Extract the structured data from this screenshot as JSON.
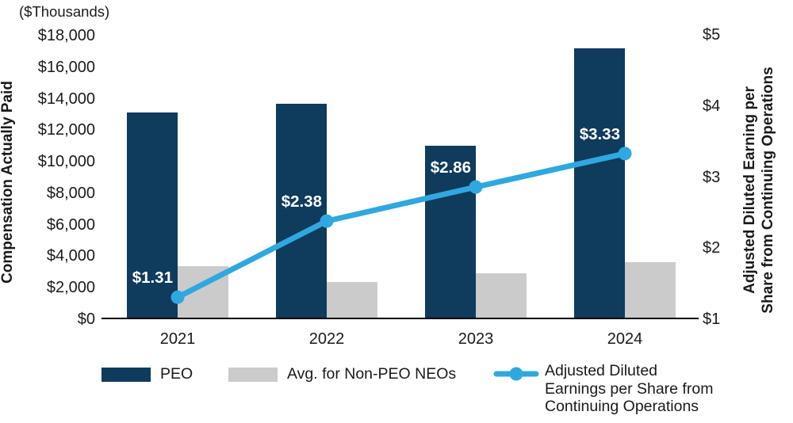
{
  "chart_data": {
    "type": "combo-bar-line",
    "categories": [
      "2021",
      "2022",
      "2023",
      "2024"
    ],
    "series": [
      {
        "name": "PEO",
        "type": "bar",
        "axis": "left",
        "color": "#0F3B5D",
        "values": [
          13100,
          13700,
          11000,
          17200
        ]
      },
      {
        "name": "Avg. for Non-PEO NEOs",
        "type": "bar",
        "axis": "left",
        "color": "#CBCBCB",
        "values": [
          3350,
          2350,
          2900,
          3600
        ]
      },
      {
        "name": "Adjusted Diluted Earnings per Share from Continuing Operations",
        "type": "line",
        "axis": "right",
        "color": "#2FA8DF",
        "values": [
          1.31,
          2.38,
          2.86,
          3.33
        ],
        "point_labels": [
          "$1.31",
          "$2.38",
          "$2.86",
          "$3.33"
        ]
      }
    ],
    "left_axis": {
      "unit_label": "($Thousands)",
      "title": "Compensation Actually Paid",
      "min": 0,
      "max": 18000,
      "ticks": [
        {
          "label": "$18,000",
          "value": 18000
        },
        {
          "label": "$16,000",
          "value": 16000
        },
        {
          "label": "$14,000",
          "value": 14000
        },
        {
          "label": "$12,000",
          "value": 12000
        },
        {
          "label": "$10,000",
          "value": 10000
        },
        {
          "label": "$8,000",
          "value": 8000
        },
        {
          "label": "$6,000",
          "value": 6000
        },
        {
          "label": "$4,000",
          "value": 4000
        },
        {
          "label": "$2,000",
          "value": 2000
        },
        {
          "label": "$0",
          "value": 0
        }
      ]
    },
    "right_axis": {
      "title_lines": [
        "Adjusted Diluted Earning per",
        "Share from Continuing Operations"
      ],
      "min": 1,
      "max": 5,
      "ticks": [
        {
          "label": "$5",
          "value": 5
        },
        {
          "label": "$4",
          "value": 4
        },
        {
          "label": "$3",
          "value": 3
        },
        {
          "label": "$2",
          "value": 2
        },
        {
          "label": "$1",
          "value": 1
        }
      ]
    },
    "grid": false,
    "legend_position": "bottom"
  },
  "legend": {
    "items": [
      {
        "label": "PEO",
        "swatch": "bar",
        "color": "#0F3B5D"
      },
      {
        "label": "Avg. for Non-PEO NEOs",
        "swatch": "bar",
        "color": "#CBCBCB"
      },
      {
        "label_lines": [
          "Adjusted Diluted",
          "Earnings per Share from",
          "Continuing Operations"
        ],
        "swatch": "line-dot",
        "color": "#2FA8DF"
      }
    ]
  },
  "colors": {
    "text": "#1A1A1A",
    "axis_line": "#000000",
    "background": "#FFFFFF"
  }
}
